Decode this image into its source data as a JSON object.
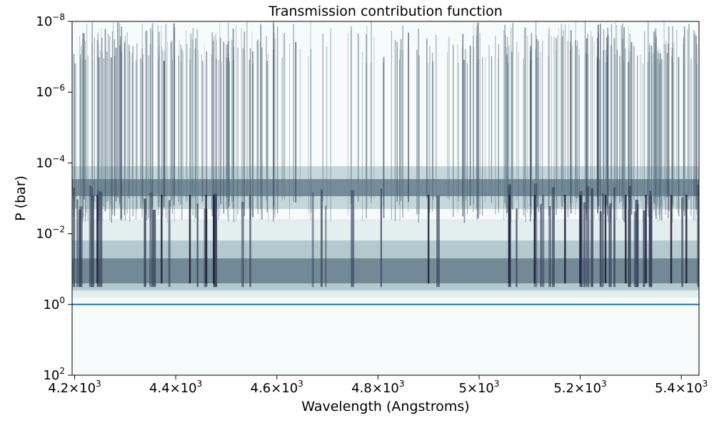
{
  "chart_data": {
    "type": "heatmap",
    "title": "Transmission contribution function",
    "xlabel": "Wavelength (Angstroms)",
    "ylabel": "P (bar)",
    "xlim": [
      4195,
      5435
    ],
    "ylim": [
      100,
      1e-08
    ],
    "yscale": "log",
    "y_inverted": true,
    "xticks": [
      {
        "value": 4200,
        "mantissa": "4.2",
        "power": "3"
      },
      {
        "value": 4400,
        "mantissa": "4.4",
        "power": "3"
      },
      {
        "value": 4600,
        "mantissa": "4.6",
        "power": "3"
      },
      {
        "value": 4800,
        "mantissa": "4.8",
        "power": "3"
      },
      {
        "value": 5000,
        "mantissa": "5",
        "power": "3"
      },
      {
        "value": 5200,
        "mantissa": "5.2",
        "power": "3"
      },
      {
        "value": 5400,
        "mantissa": "5.4",
        "power": "3"
      }
    ],
    "yticks": [
      {
        "value": 1e-08,
        "base": "10",
        "power": "−8"
      },
      {
        "value": 1e-06,
        "base": "10",
        "power": "−6"
      },
      {
        "value": 0.0001,
        "base": "10",
        "power": "−4"
      },
      {
        "value": 0.01,
        "base": "10",
        "power": "−2"
      },
      {
        "value": 1,
        "base": "10",
        "power": "0"
      },
      {
        "value": 100,
        "base": "10",
        "power": "2"
      }
    ],
    "reference_line": {
      "pressure": 1,
      "color": "#1f77b4"
    },
    "upper_band_pressure": 0.0005,
    "lower_band_pressure": 0.1,
    "strong_lines_wavelength": [
      4245,
      4372,
      4428,
      4460,
      4475,
      4900,
      5060,
      5110,
      5170,
      5200,
      5250,
      5290,
      5330,
      5380,
      5410
    ],
    "colormap": [
      "#f7fbfb",
      "#d6e6e6",
      "#9fb9bf",
      "#607a88",
      "#3b4660",
      "#1c1a34"
    ]
  }
}
